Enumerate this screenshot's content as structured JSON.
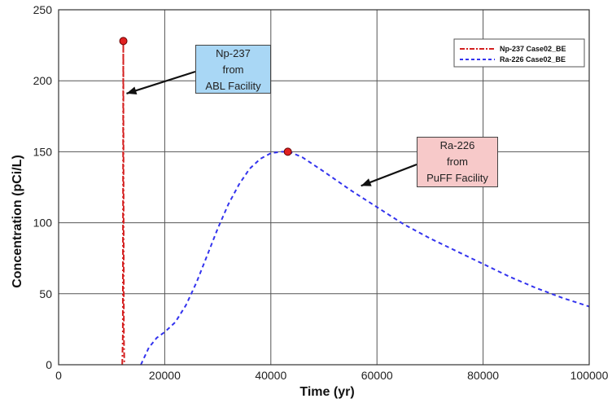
{
  "chart_data": {
    "type": "line",
    "xlabel": "Time (yr)",
    "ylabel": "Concentration (pCi/L)",
    "xlim": [
      0,
      100000
    ],
    "ylim": [
      0,
      250
    ],
    "x_ticks": [
      "0",
      "20000",
      "40000",
      "60000",
      "80000",
      "100000"
    ],
    "y_ticks": [
      "0",
      "50",
      "100",
      "150",
      "200",
      "250"
    ],
    "x_tick_values": [
      0,
      20000,
      40000,
      60000,
      80000,
      100000
    ],
    "y_tick_values": [
      0,
      50,
      100,
      150,
      200,
      250
    ],
    "grid": true,
    "legend_position": "top-right",
    "series": [
      {
        "name": "Np-237 Case02_BE",
        "color": "#d42020",
        "style": "dash-dot",
        "x": [
          12000,
          12100,
          12200,
          12300,
          12400
        ],
        "y": [
          0,
          20,
          228,
          20,
          0
        ]
      },
      {
        "name": "Ra-226 Case02_BE",
        "color": "#3333ee",
        "style": "dashed",
        "x": [
          15500,
          17000,
          18500,
          20000,
          22000,
          24000,
          26000,
          28000,
          30000,
          32000,
          34000,
          36000,
          38000,
          40000,
          42000,
          43500,
          46000,
          50000,
          55000,
          60000,
          65000,
          70000,
          75000,
          80000,
          85000,
          90000,
          95000,
          100000
        ],
        "y": [
          0,
          12,
          19,
          23,
          30,
          42,
          58,
          77,
          96,
          113,
          127,
          138,
          145,
          149,
          150,
          150,
          146,
          136,
          123,
          111,
          99,
          89,
          80,
          71,
          62,
          54,
          47,
          41
        ]
      }
    ],
    "peaks": [
      {
        "series": "Np-237 Case02_BE",
        "x": 12200,
        "y": 228
      },
      {
        "series": "Ra-226 Case02_BE",
        "x": 43200,
        "y": 150
      }
    ],
    "annotations": [
      {
        "lines": [
          "Np-237",
          "from",
          "ABL Facility"
        ],
        "color": "#a9d7f5",
        "arrow_to": [
          12800,
          191
        ]
      },
      {
        "lines": [
          "Ra-226",
          "from",
          "PuFF Facility"
        ],
        "color": "#f7c9c9",
        "arrow_to": [
          57000,
          126
        ]
      }
    ]
  }
}
